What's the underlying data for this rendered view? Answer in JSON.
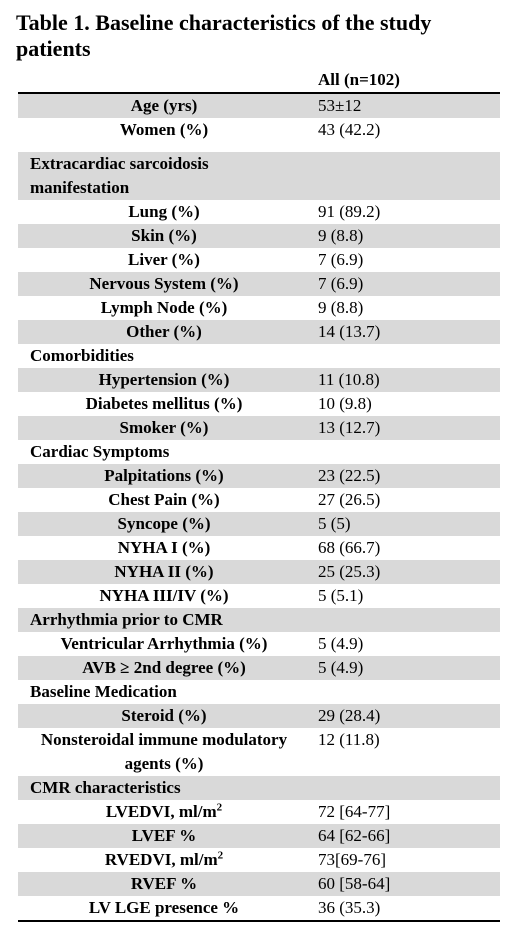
{
  "title": "Table 1. Baseline characteristics of the study patients",
  "table": {
    "header": "All (n=102)",
    "groups": [
      {
        "rows": [
          {
            "label": "Age (yrs)",
            "value": "53±12"
          },
          {
            "label": "Women (%)",
            "value": "43 (42.2)"
          }
        ]
      },
      {
        "title": "Extracardiac sarcoidosis manifestation",
        "rows": [
          {
            "label": "Lung (%)",
            "value": "91 (89.2)"
          },
          {
            "label": "Skin (%)",
            "value": "9 (8.8)"
          },
          {
            "label": "Liver (%)",
            "value": "7 (6.9)"
          },
          {
            "label": "Nervous System (%)",
            "value": "7 (6.9)"
          },
          {
            "label": "Lymph Node (%)",
            "value": "9 (8.8)"
          },
          {
            "label": "Other (%)",
            "value": "14 (13.7)"
          }
        ]
      },
      {
        "title": "Comorbidities",
        "rows": [
          {
            "label": "Hypertension (%)",
            "value": "11 (10.8)"
          },
          {
            "label": "Diabetes mellitus (%)",
            "value": "10 (9.8)"
          },
          {
            "label": "Smoker (%)",
            "value": "13 (12.7)"
          }
        ]
      },
      {
        "title": "Cardiac Symptoms",
        "rows": [
          {
            "label": "Palpitations (%)",
            "value": "23 (22.5)"
          },
          {
            "label": "Chest Pain (%)",
            "value": "27 (26.5)"
          },
          {
            "label": "Syncope (%)",
            "value": "5 (5)"
          },
          {
            "label": "NYHA I (%)",
            "value": "68 (66.7)"
          },
          {
            "label": "NYHA II (%)",
            "value": "25 (25.3)"
          },
          {
            "label": "NYHA III/IV (%)",
            "value": "5 (5.1)"
          }
        ]
      },
      {
        "title": "Arrhythmia prior to CMR",
        "rows": [
          {
            "label": "Ventricular Arrhythmia (%)",
            "value": "5 (4.9)"
          },
          {
            "label": "AVB ≥ 2nd degree (%)",
            "value": "5 (4.9)"
          }
        ]
      },
      {
        "title": "Baseline Medication",
        "rows": [
          {
            "label": "Steroid (%)",
            "value": "29 (28.4)"
          },
          {
            "label": "Nonsteroidal immune modulatory agents (%)",
            "value": "12 (11.8)"
          }
        ]
      },
      {
        "title": "CMR characteristics",
        "rows": [
          {
            "label": "LVEDVI, ml/m",
            "sup": "2",
            "value": "72 [64-77]"
          },
          {
            "label": "LVEF %",
            "value": "64 [62-66]"
          },
          {
            "label": "RVEDVI, ml/m",
            "sup": "2",
            "value": "73[69-76]"
          },
          {
            "label": "RVEF %",
            "value": "60 [58-64]"
          },
          {
            "label": "LV LGE presence %",
            "value": "36 (35.3)"
          }
        ]
      }
    ]
  }
}
